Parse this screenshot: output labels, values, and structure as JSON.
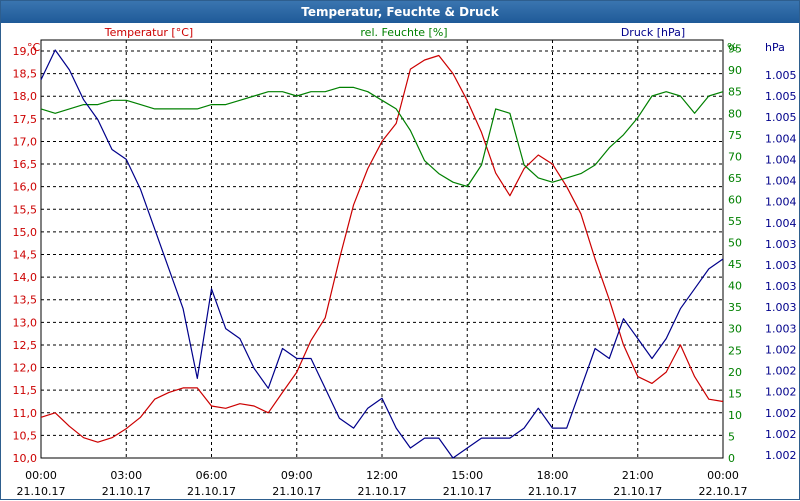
{
  "window": {
    "title": "Temperatur, Feuchte & Druck"
  },
  "chart_data": {
    "type": "line",
    "title": "Temperatur, Feuchte & Druck",
    "x_tick_labels": [
      [
        "00:00",
        "21.10.17"
      ],
      [
        "03:00",
        "21.10.17"
      ],
      [
        "06:00",
        "21.10.17"
      ],
      [
        "09:00",
        "21.10.17"
      ],
      [
        "12:00",
        "21.10.17"
      ],
      [
        "15:00",
        "21.10.17"
      ],
      [
        "18:00",
        "21.10.17"
      ],
      [
        "21:00",
        "21.10.17"
      ],
      [
        "00:00",
        "22.10.17"
      ]
    ],
    "xlim": [
      0,
      24
    ],
    "grid": true,
    "axes": {
      "temperature": {
        "label": "Temperatur [°C]",
        "unit": "°C",
        "ylim": [
          10.0,
          19.0
        ],
        "step": 0.5,
        "tick_labels": [
          "10,0",
          "10,5",
          "11,0",
          "11,5",
          "12,0",
          "12,5",
          "13,0",
          "13,5",
          "14,0",
          "14,5",
          "15,0",
          "15,5",
          "16,0",
          "16,5",
          "17,0",
          "17,5",
          "18,0",
          "18,5",
          "19,0"
        ],
        "color": "#cc0000"
      },
      "humidity": {
        "label": "rel. Feuchte [%]",
        "unit": "%",
        "ylim": [
          0,
          97
        ],
        "step": 5,
        "tick_labels": [
          "0",
          "5",
          "10",
          "15",
          "20",
          "25",
          "30",
          "35",
          "40",
          "45",
          "50",
          "55",
          "60",
          "65",
          "70",
          "75",
          "80",
          "85",
          "90",
          "95"
        ],
        "color": "#008000"
      },
      "pressure": {
        "label": "Druck [hPa]",
        "unit": "hPa",
        "tick_labels": [
          "1.002",
          "1.002",
          "1.002",
          "1.002",
          "1.002",
          "1.002",
          "1.003",
          "1.003",
          "1.003",
          "1.003",
          "1.003",
          "1.004",
          "1.004",
          "1.004",
          "1.004",
          "1.004",
          "1.005",
          "1.005",
          "1.005"
        ],
        "color": "#00008b"
      }
    },
    "series": [
      {
        "name": "Temperatur",
        "axis": "temperature",
        "color": "#cc0000",
        "x": [
          0,
          0.5,
          1,
          1.5,
          2,
          2.5,
          3,
          3.5,
          4,
          4.5,
          5,
          5.5,
          6,
          6.5,
          7,
          7.5,
          8,
          8.5,
          9,
          9.5,
          10,
          10.5,
          11,
          11.5,
          12,
          12.5,
          13,
          13.5,
          14,
          14.5,
          15,
          15.5,
          16,
          16.5,
          17,
          17.5,
          18,
          18.5,
          19,
          19.5,
          20,
          20.5,
          21,
          21.5,
          22,
          22.5,
          23,
          23.5,
          24
        ],
        "values": [
          10.9,
          11.0,
          10.7,
          10.45,
          10.35,
          10.45,
          10.65,
          10.9,
          11.3,
          11.45,
          11.55,
          11.55,
          11.15,
          11.1,
          11.2,
          11.15,
          11.0,
          11.45,
          11.9,
          12.6,
          13.1,
          14.4,
          15.6,
          16.4,
          17.0,
          17.4,
          18.6,
          18.8,
          18.9,
          18.5,
          17.9,
          17.2,
          16.3,
          15.8,
          16.4,
          16.7,
          16.5,
          16.0,
          15.4,
          14.4,
          13.5,
          12.5,
          11.8,
          11.65,
          11.9,
          12.5,
          11.8,
          11.3,
          11.25
        ]
      },
      {
        "name": "rel. Feuchte",
        "axis": "humidity",
        "color": "#008000",
        "x": [
          0,
          0.5,
          1,
          1.5,
          2,
          2.5,
          3,
          3.5,
          4,
          4.5,
          5,
          5.5,
          6,
          6.5,
          7,
          7.5,
          8,
          8.5,
          9,
          9.5,
          10,
          10.5,
          11,
          11.5,
          12,
          12.5,
          13,
          13.5,
          14,
          14.5,
          15,
          15.5,
          16,
          16.5,
          17,
          17.5,
          18,
          18.5,
          19,
          19.5,
          20,
          20.5,
          21,
          21.5,
          22,
          22.5,
          23,
          23.5,
          24
        ],
        "values": [
          81,
          80,
          81,
          82,
          82,
          83,
          83,
          82,
          81,
          81,
          81,
          81,
          82,
          82,
          83,
          84,
          85,
          85,
          84,
          85,
          85,
          86,
          86,
          85,
          83,
          81,
          76,
          69,
          66,
          64,
          63,
          68,
          81,
          80,
          68,
          65,
          64,
          65,
          66,
          68,
          72,
          75,
          79,
          84,
          85,
          84,
          80,
          84,
          85
        ]
      },
      {
        "name": "Druck",
        "axis": "pressure",
        "color": "#00008b",
        "x": [
          0,
          0.5,
          1,
          1.5,
          2,
          2.5,
          3,
          3.5,
          4,
          4.5,
          5,
          5.5,
          6,
          6.5,
          7,
          7.5,
          8,
          8.5,
          9,
          9.5,
          10,
          10.5,
          11,
          11.5,
          12,
          12.5,
          13,
          13.5,
          14,
          14.5,
          15,
          15.5,
          16,
          16.5,
          17,
          17.5,
          18,
          18.5,
          19,
          19.5,
          20,
          20.5,
          21,
          21.5,
          22,
          22.5,
          23,
          23.5,
          24
        ],
        "values": [
          1.0054,
          1.0057,
          1.0055,
          1.0052,
          1.005,
          1.0047,
          1.0046,
          1.0043,
          1.0039,
          1.0035,
          1.0031,
          1.0024,
          1.0033,
          1.0029,
          1.0028,
          1.0025,
          1.0023,
          1.0027,
          1.0026,
          1.0026,
          1.0023,
          1.002,
          1.0019,
          1.0021,
          1.0022,
          1.0019,
          1.0017,
          1.0018,
          1.0018,
          1.0016,
          1.0017,
          1.0018,
          1.0018,
          1.0018,
          1.0019,
          1.0021,
          1.0019,
          1.0019,
          1.0023,
          1.0027,
          1.0026,
          1.003,
          1.0028,
          1.0026,
          1.0028,
          1.0031,
          1.0033,
          1.0035,
          1.0036
        ]
      }
    ]
  }
}
